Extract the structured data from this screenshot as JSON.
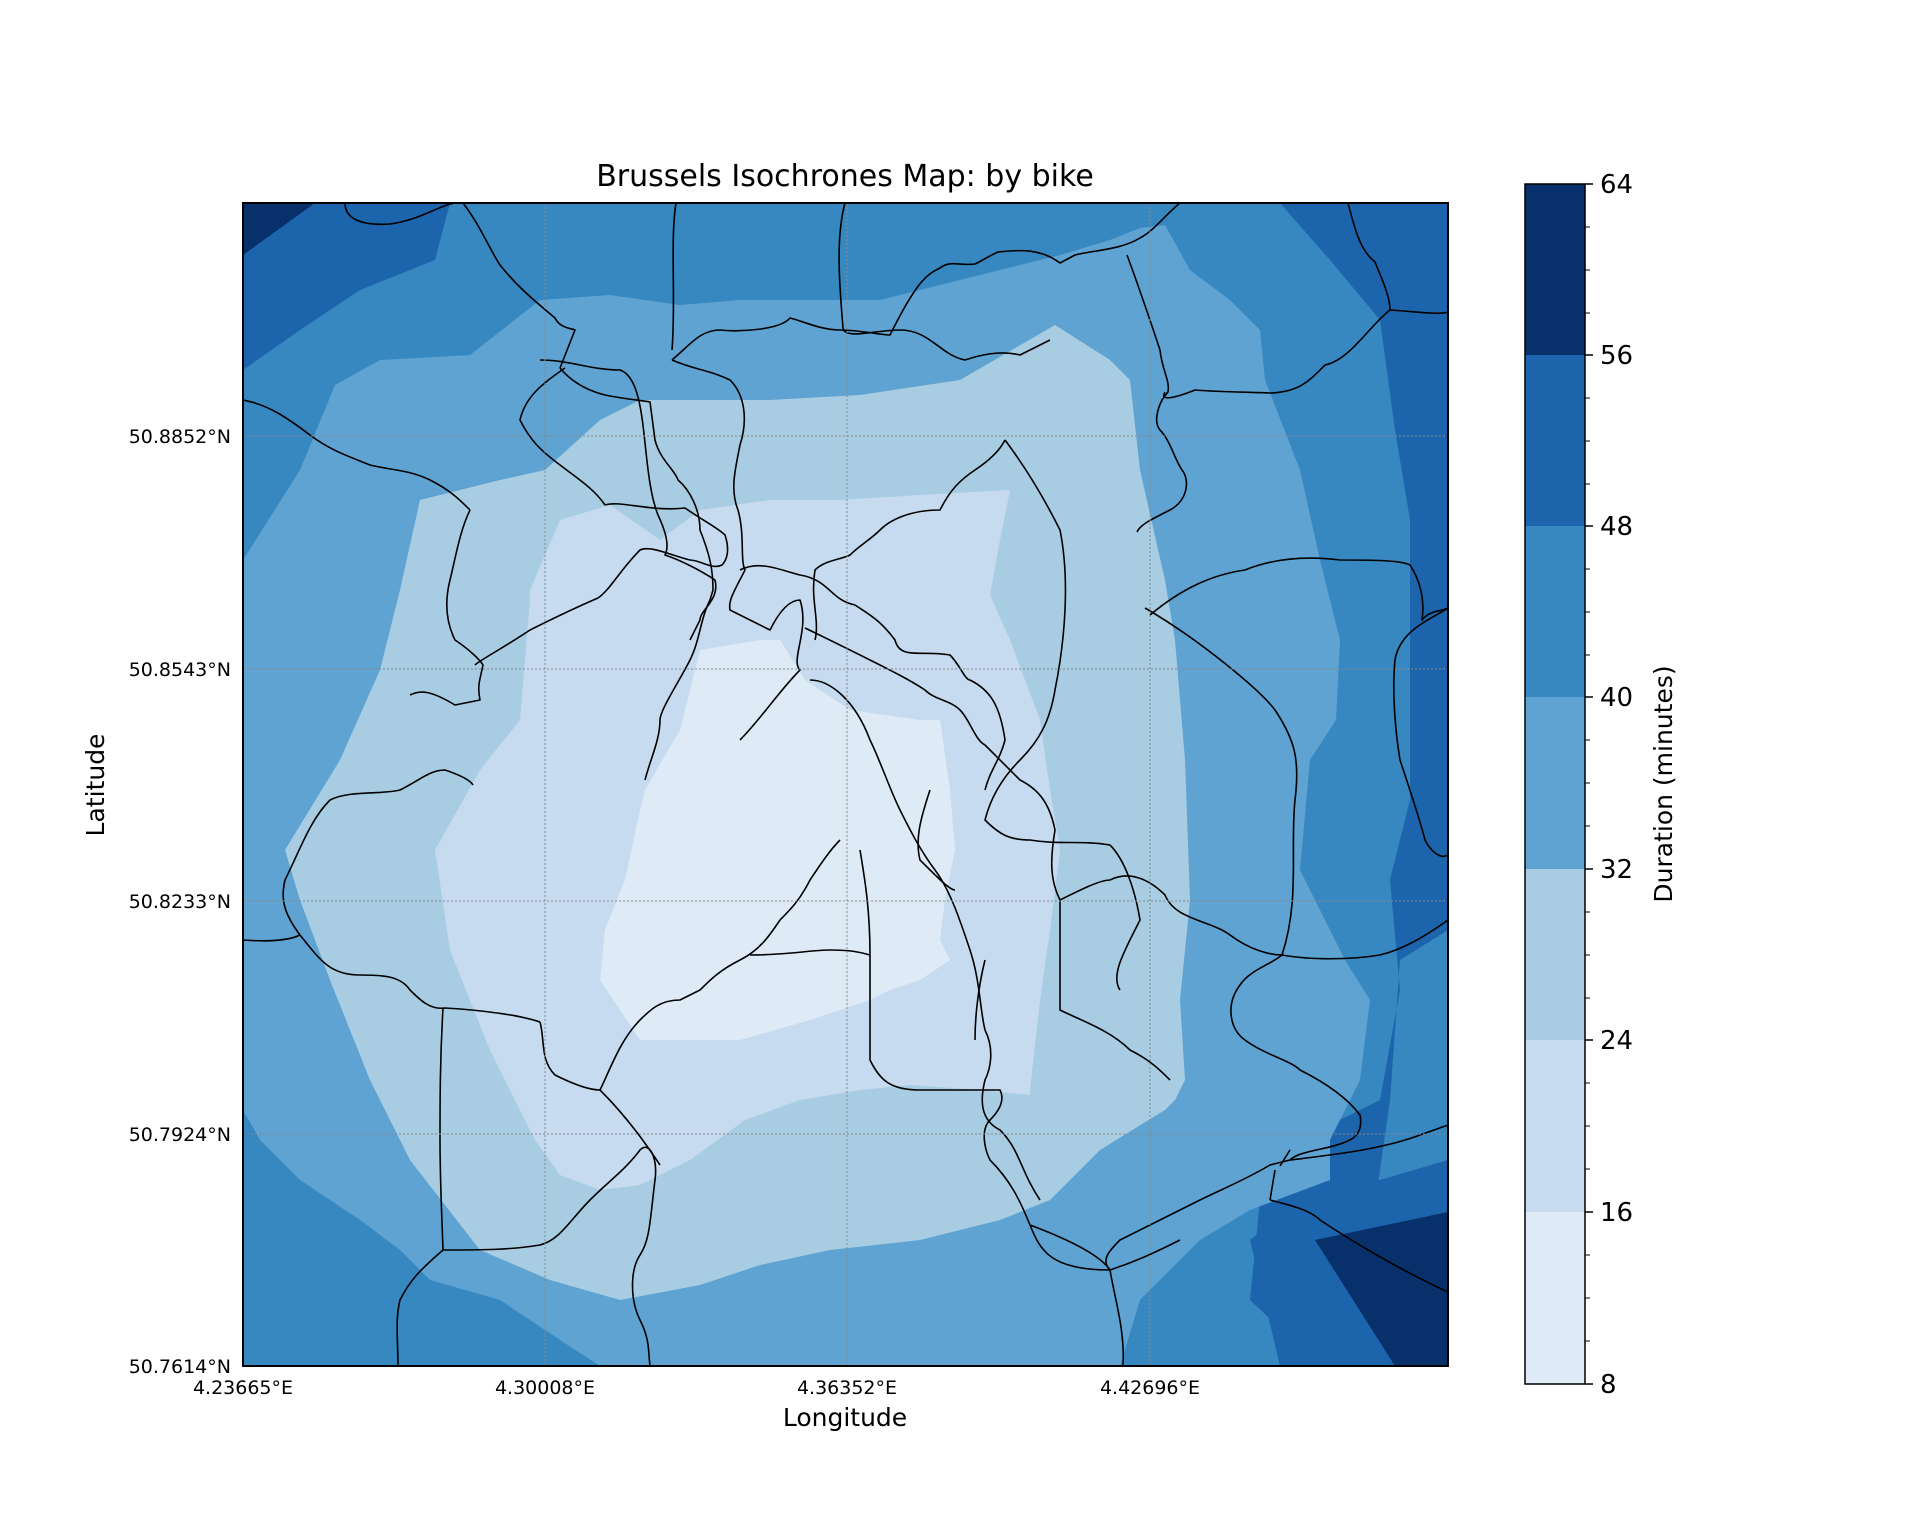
{
  "chart_data": {
    "type": "heatmap",
    "title": "Brussels Isochrones Map: by bike",
    "xlabel": "Longitude",
    "ylabel": "Latitude",
    "xlim": [
      4.23665,
      4.47455
    ],
    "ylim": [
      50.7614,
      50.9161
    ],
    "x_ticks": [
      "4.23665°E",
      "4.30008°E",
      "4.36352°E",
      "4.42696°E"
    ],
    "y_ticks": [
      "50.8852°N",
      "50.8543°N",
      "50.8233°N",
      "50.7924°N",
      "50.7614°N"
    ],
    "grid": true,
    "colorbar": {
      "label": "Duration (minutes)",
      "ticks": [
        "8",
        "16",
        "24",
        "32",
        "40",
        "48",
        "56",
        "64"
      ],
      "levels": [
        8,
        16,
        24,
        32,
        40,
        48,
        56,
        64
      ],
      "colors": [
        "#deebf7",
        "#c6dbef",
        "#a8cde3",
        "#5ea3d2",
        "#3787c0",
        "#1c64ac",
        "#08306b"
      ]
    },
    "contours_minutes": [
      {
        "level": 16,
        "note": "central core around Brussels center"
      },
      {
        "level": 24,
        "note": "inner ring"
      },
      {
        "level": 32,
        "note": "middle ring"
      },
      {
        "level": 40,
        "note": "outer ring"
      },
      {
        "level": 48,
        "note": "periphery east and north-west"
      },
      {
        "level": 56,
        "note": "corners north-west and south-east"
      }
    ]
  }
}
